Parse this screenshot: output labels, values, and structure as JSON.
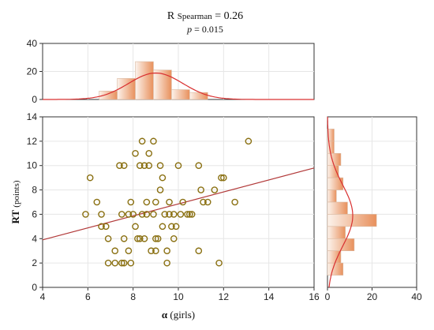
{
  "chart_data": {
    "type": "scatter",
    "annotation": {
      "r_prefix": "R",
      "r_sub": "Spearman",
      "r_value": "= 0.26",
      "p_symbol": "p",
      "p_value": "= 0.015"
    },
    "xlabel_greek": "α",
    "xlabel_rest": "(girls)",
    "ylabel_bold": "RT",
    "ylabel_rest": "(points)",
    "xlim": [
      4,
      16
    ],
    "ylim": [
      0,
      14
    ],
    "xticks": [
      4,
      6,
      8,
      10,
      12,
      14,
      16
    ],
    "yticks": [
      0,
      2,
      4,
      6,
      8,
      10,
      12,
      14
    ],
    "grid": true,
    "colors": {
      "point": "#8a7012",
      "regression_line": "#b23a3a",
      "bar_fill_light": "#fbeee4",
      "bar_fill_dark": "#e8905c",
      "normal_curve": "#d93030"
    },
    "regression_line": {
      "x": [
        4,
        16
      ],
      "y": [
        3.9,
        9.8
      ]
    },
    "points": [
      {
        "x": 6.1,
        "y": 9
      },
      {
        "x": 6.4,
        "y": 7
      },
      {
        "x": 5.9,
        "y": 6
      },
      {
        "x": 6.6,
        "y": 6
      },
      {
        "x": 6.6,
        "y": 5
      },
      {
        "x": 6.8,
        "y": 5
      },
      {
        "x": 6.9,
        "y": 4
      },
      {
        "x": 6.9,
        "y": 2
      },
      {
        "x": 7.2,
        "y": 2
      },
      {
        "x": 7.2,
        "y": 3
      },
      {
        "x": 7.5,
        "y": 2
      },
      {
        "x": 7.6,
        "y": 2
      },
      {
        "x": 7.4,
        "y": 10
      },
      {
        "x": 7.6,
        "y": 10
      },
      {
        "x": 7.5,
        "y": 6
      },
      {
        "x": 7.6,
        "y": 4
      },
      {
        "x": 7.8,
        "y": 6
      },
      {
        "x": 7.9,
        "y": 2
      },
      {
        "x": 7.8,
        "y": 3
      },
      {
        "x": 7.9,
        "y": 7
      },
      {
        "x": 8.0,
        "y": 6
      },
      {
        "x": 8.1,
        "y": 11
      },
      {
        "x": 8.2,
        "y": 4
      },
      {
        "x": 8.1,
        "y": 5
      },
      {
        "x": 8.3,
        "y": 4
      },
      {
        "x": 8.3,
        "y": 10
      },
      {
        "x": 8.4,
        "y": 12
      },
      {
        "x": 8.4,
        "y": 6
      },
      {
        "x": 8.5,
        "y": 4
      },
      {
        "x": 8.5,
        "y": 10
      },
      {
        "x": 8.6,
        "y": 7
      },
      {
        "x": 8.6,
        "y": 6
      },
      {
        "x": 8.7,
        "y": 11
      },
      {
        "x": 8.7,
        "y": 10
      },
      {
        "x": 8.8,
        "y": 3
      },
      {
        "x": 8.9,
        "y": 12
      },
      {
        "x": 8.9,
        "y": 6
      },
      {
        "x": 9.0,
        "y": 4
      },
      {
        "x": 9.0,
        "y": 3
      },
      {
        "x": 9.0,
        "y": 7
      },
      {
        "x": 9.1,
        "y": 4
      },
      {
        "x": 9.2,
        "y": 10
      },
      {
        "x": 9.2,
        "y": 8
      },
      {
        "x": 9.3,
        "y": 9
      },
      {
        "x": 9.3,
        "y": 5
      },
      {
        "x": 9.4,
        "y": 6
      },
      {
        "x": 9.5,
        "y": 3
      },
      {
        "x": 9.5,
        "y": 2
      },
      {
        "x": 9.6,
        "y": 6
      },
      {
        "x": 9.6,
        "y": 7
      },
      {
        "x": 9.7,
        "y": 5
      },
      {
        "x": 9.8,
        "y": 4
      },
      {
        "x": 9.8,
        "y": 6
      },
      {
        "x": 9.9,
        "y": 5
      },
      {
        "x": 10.0,
        "y": 10
      },
      {
        "x": 10.1,
        "y": 6
      },
      {
        "x": 10.2,
        "y": 7
      },
      {
        "x": 10.4,
        "y": 6
      },
      {
        "x": 10.5,
        "y": 6
      },
      {
        "x": 10.6,
        "y": 6
      },
      {
        "x": 10.9,
        "y": 10
      },
      {
        "x": 10.9,
        "y": 3
      },
      {
        "x": 11.0,
        "y": 8
      },
      {
        "x": 11.1,
        "y": 7
      },
      {
        "x": 11.3,
        "y": 7
      },
      {
        "x": 11.6,
        "y": 8
      },
      {
        "x": 11.9,
        "y": 9
      },
      {
        "x": 12.0,
        "y": 9
      },
      {
        "x": 11.8,
        "y": 2
      },
      {
        "x": 12.5,
        "y": 7
      },
      {
        "x": 13.1,
        "y": 12
      }
    ],
    "top_histogram": {
      "ylim": [
        0,
        40
      ],
      "yticks": [
        0,
        20,
        40
      ],
      "bins": [
        {
          "x0": 6.5,
          "x1": 7.3,
          "count": 6
        },
        {
          "x0": 7.3,
          "x1": 8.1,
          "count": 15
        },
        {
          "x0": 8.1,
          "x1": 8.9,
          "count": 27
        },
        {
          "x0": 8.9,
          "x1": 9.7,
          "count": 21
        },
        {
          "x0": 9.7,
          "x1": 10.5,
          "count": 7
        },
        {
          "x0": 10.5,
          "x1": 11.3,
          "count": 5
        }
      ],
      "normal_fit": {
        "mean": 9.0,
        "sd": 1.2,
        "n": 71,
        "binwidth": 0.8
      }
    },
    "right_histogram": {
      "xlim": [
        0,
        40
      ],
      "xticks": [
        0,
        20,
        40
      ],
      "bins": [
        {
          "y0": 12,
          "y1": 13,
          "count": 3
        },
        {
          "y0": 11,
          "y1": 12,
          "count": 3
        },
        {
          "y0": 10,
          "y1": 11,
          "count": 6
        },
        {
          "y0": 9,
          "y1": 10,
          "count": 5
        },
        {
          "y0": 8,
          "y1": 9,
          "count": 7
        },
        {
          "y0": 7,
          "y1": 8,
          "count": 4
        },
        {
          "y0": 6,
          "y1": 7,
          "count": 9
        },
        {
          "y0": 5,
          "y1": 6,
          "count": 22
        },
        {
          "y0": 4,
          "y1": 5,
          "count": 8
        },
        {
          "y0": 3,
          "y1": 4,
          "count": 12
        },
        {
          "y0": 2,
          "y1": 3,
          "count": 6
        },
        {
          "y0": 1,
          "y1": 2,
          "count": 7
        }
      ],
      "normal_fit": {
        "mean": 5.9,
        "sd": 2.5,
        "n": 71,
        "binwidth": 1
      }
    }
  }
}
